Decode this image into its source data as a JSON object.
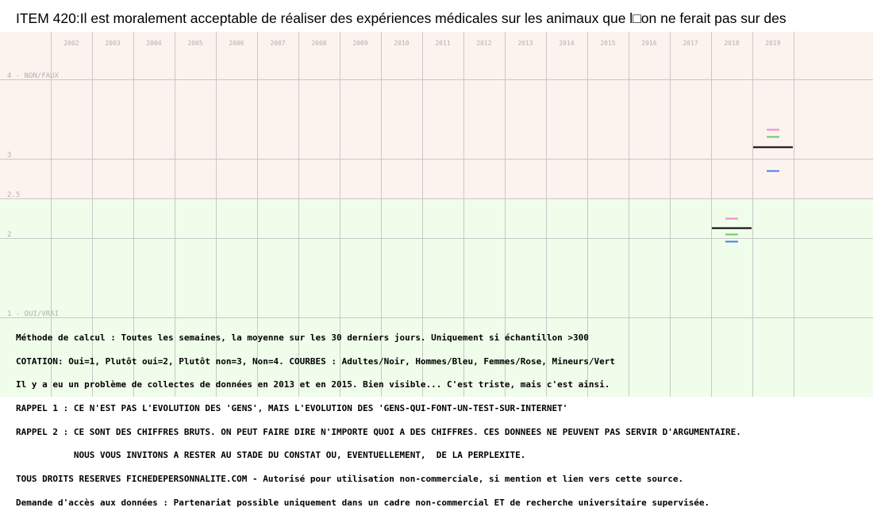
{
  "title": "ITEM 420:Il est moralement acceptable de réaliser des expériences médicales sur les animaux que l□on ne ferait pas sur des",
  "colors": {
    "zone_top": "#fdf3ee",
    "zone_bottom": "#effdea",
    "grid": "#c8c8c8",
    "axis_text": "#b0b0b0",
    "adults": "#000000",
    "men": "#4a7ee8",
    "women": "#ee88cc",
    "minors": "#66cc66"
  },
  "chart_data": {
    "type": "line",
    "title": "ITEM 420:Il est moralement acceptable de réaliser des expériences médicales sur les animaux que l□on ne ferait pas sur des",
    "x_ticks": [
      "2002",
      "2003",
      "2004",
      "2005",
      "2006",
      "2007",
      "2008",
      "2009",
      "2010",
      "2011",
      "2012",
      "2013",
      "2014",
      "2015",
      "2016",
      "2017",
      "2018",
      "2019"
    ],
    "y_ticks": [
      {
        "value": 4,
        "label": "4 - NON/FAUX"
      },
      {
        "value": 3,
        "label": "3"
      },
      {
        "value": 2.5,
        "label": "2.5"
      },
      {
        "value": 2,
        "label": "2"
      },
      {
        "value": 1,
        "label": "1 - OUI/VRAI"
      }
    ],
    "ylim": [
      1,
      4
    ],
    "grid": true,
    "series": [
      {
        "name": "Adultes",
        "color": "#000000",
        "points": [
          {
            "x": "2018",
            "y": 2.13
          },
          {
            "x": "2019",
            "y": 3.15
          }
        ]
      },
      {
        "name": "Hommes",
        "color": "#4a7ee8",
        "points": [
          {
            "x": "2018",
            "y": 1.96
          },
          {
            "x": "2019",
            "y": 2.85
          }
        ]
      },
      {
        "name": "Femmes",
        "color": "#ee88cc",
        "points": [
          {
            "x": "2018",
            "y": 2.25
          },
          {
            "x": "2019",
            "y": 3.37
          }
        ]
      },
      {
        "name": "Mineurs",
        "color": "#66cc66",
        "points": [
          {
            "x": "2018",
            "y": 2.05
          },
          {
            "x": "2019",
            "y": 3.28
          }
        ]
      }
    ]
  },
  "notes": [
    "Méthode de calcul : Toutes les semaines, la moyenne sur les 30 derniers jours. Uniquement si échantillon >300",
    "COTATION: Oui=1, Plutôt oui=2, Plutôt non=3, Non=4. COURBES : Adultes/Noir, Hommes/Bleu, Femmes/Rose, Mineurs/Vert",
    "Il y a eu un problème de collectes de données en 2013 et en 2015. Bien visible... C'est triste, mais c'est ainsi.",
    "RAPPEL 1 : CE N'EST PAS L'EVOLUTION DES 'GENS', MAIS L'EVOLUTION DES 'GENS-QUI-FONT-UN-TEST-SUR-INTERNET'",
    "RAPPEL 2 : CE SONT DES CHIFFRES BRUTS. ON PEUT FAIRE DIRE N'IMPORTE QUOI A DES CHIFFRES. CES DONNEES NE PEUVENT PAS SERVIR D'ARGUMENTAIRE.",
    "           NOUS VOUS INVITONS A RESTER AU STADE DU CONSTAT OU, EVENTUELLEMENT,  DE LA PERPLEXITE.",
    "TOUS DROITS RESERVES FICHEDEPERSONNALITE.COM - Autorisé pour utilisation non-commerciale, si mention et lien vers cette source.",
    "Demande d'accès aux données : Partenariat possible uniquement dans un cadre non-commercial ET de recherche universitaire supervisée."
  ]
}
